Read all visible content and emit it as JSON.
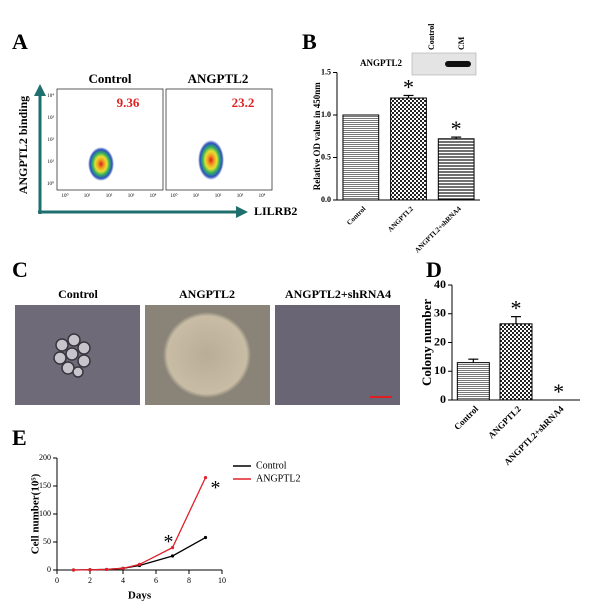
{
  "panel_labels": [
    "A",
    "B",
    "C",
    "D",
    "E"
  ],
  "flow": {
    "panels": [
      {
        "title": "Control",
        "value": 9.36
      },
      {
        "title": "ANGPTL2",
        "value": 23.2
      }
    ],
    "y_label": "ANGPTL2 binding",
    "x_label": "LILRB2",
    "tick_labels": [
      "10⁰",
      "10¹",
      "10²",
      "10³",
      "10⁴"
    ]
  },
  "micrographs": {
    "titles": [
      "Control",
      "ANGPTL2",
      "ANGPTL2+shRNA4"
    ]
  },
  "chart_data": [
    {
      "type": "bar",
      "y_label": "Relative OD value in 450nm",
      "categories": [
        "Control",
        "ANGPTL2",
        "ANGPTL2+shRNA4"
      ],
      "values": [
        1.0,
        1.2,
        0.72
      ],
      "errors": [
        0,
        0.03,
        0.02
      ],
      "ylim": [
        0,
        1.5
      ],
      "yticks": [
        {
          "value": 0,
          "label": "0.0"
        },
        0.5,
        {
          "value": 1,
          "label": "1.0"
        },
        1.5
      ],
      "annotations": [
        "*",
        "*"
      ],
      "inset": {
        "title": "ANGPTL2",
        "lanes": [
          "Control",
          "CM"
        ]
      }
    },
    {
      "type": "bar",
      "y_label": "Colony number",
      "categories": [
        "Control",
        "ANGPTL2",
        "ANGPTL2+shRNA4"
      ],
      "values": [
        13,
        26.5,
        0
      ],
      "errors": [
        1.2,
        2.5,
        0
      ],
      "ylim": [
        0,
        40
      ],
      "yticks": [
        0,
        10,
        20,
        30,
        40
      ],
      "annotations": [
        "*",
        "*"
      ]
    },
    {
      "type": "line",
      "y_label": "Cell number(10⁵)",
      "x_label": "Days",
      "x": [
        1,
        2,
        3,
        4,
        5,
        7,
        9
      ],
      "series": [
        {
          "name": "Control",
          "color": "#000000",
          "values": [
            0,
            0.5,
            1,
            3,
            8,
            25,
            58
          ]
        },
        {
          "name": "ANGPTL2",
          "color": "#e0202a",
          "values": [
            0,
            0.5,
            1,
            3,
            10,
            40,
            165
          ]
        }
      ],
      "xlim": [
        0,
        10
      ],
      "xticks": [
        0,
        2,
        4,
        6,
        8,
        10
      ],
      "ylim": [
        0,
        200
      ],
      "yticks": [
        0,
        50,
        100,
        150,
        200
      ],
      "annotations": [
        "*",
        "*"
      ]
    }
  ]
}
